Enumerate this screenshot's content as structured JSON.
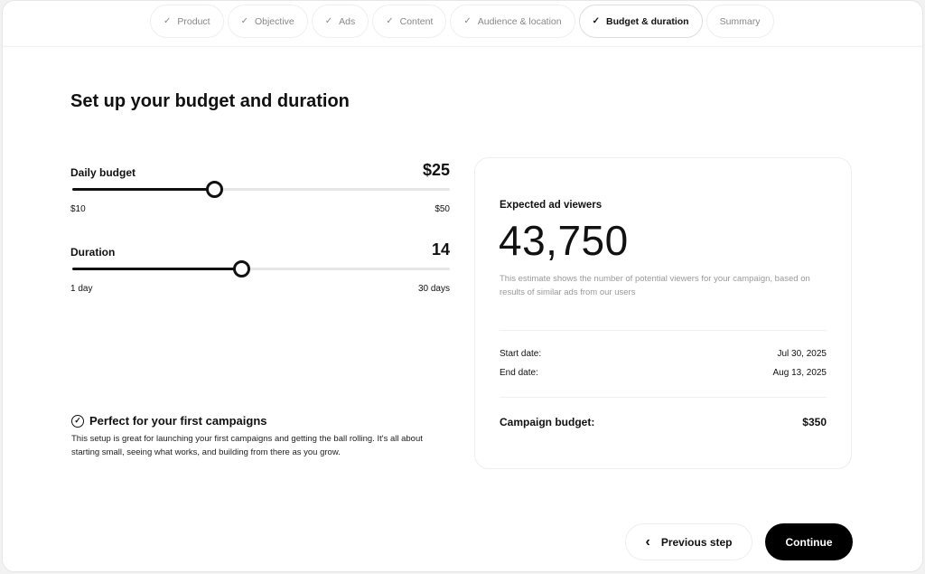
{
  "steps": [
    {
      "label": "Product",
      "done": true
    },
    {
      "label": "Objective",
      "done": true
    },
    {
      "label": "Ads",
      "done": true
    },
    {
      "label": "Content",
      "done": true
    },
    {
      "label": "Audience & location",
      "done": true
    },
    {
      "label": "Budget & duration",
      "done": true,
      "active": true
    },
    {
      "label": "Summary",
      "done": false
    }
  ],
  "title": "Set up your budget and duration",
  "daily_budget": {
    "label": "Daily budget",
    "value": "$25",
    "min": "$10",
    "max": "$50",
    "fraction": 0.375
  },
  "duration": {
    "label": "Duration",
    "value": "14",
    "min": "1 day",
    "max": "30 days",
    "fraction": 0.448
  },
  "tip": {
    "title": "Perfect for your first campaigns",
    "icon": "check-circle-icon",
    "text": "This setup is great for launching your first campaigns and getting the ball rolling. It's all about starting small, seeing what works, and building from there as you grow."
  },
  "estimate": {
    "label": "Expected ad viewers",
    "value": "43,750",
    "description": "This estimate shows the number of potential viewers for your campaign, based on results of similar ads from our users",
    "start_label": "Start date:",
    "start_value": "Jul 30, 2025",
    "end_label": "End date:",
    "end_value": "Aug 13, 2025",
    "budget_label": "Campaign budget:",
    "budget_value": "$350"
  },
  "buttons": {
    "previous": "Previous step",
    "continue": "Continue"
  }
}
